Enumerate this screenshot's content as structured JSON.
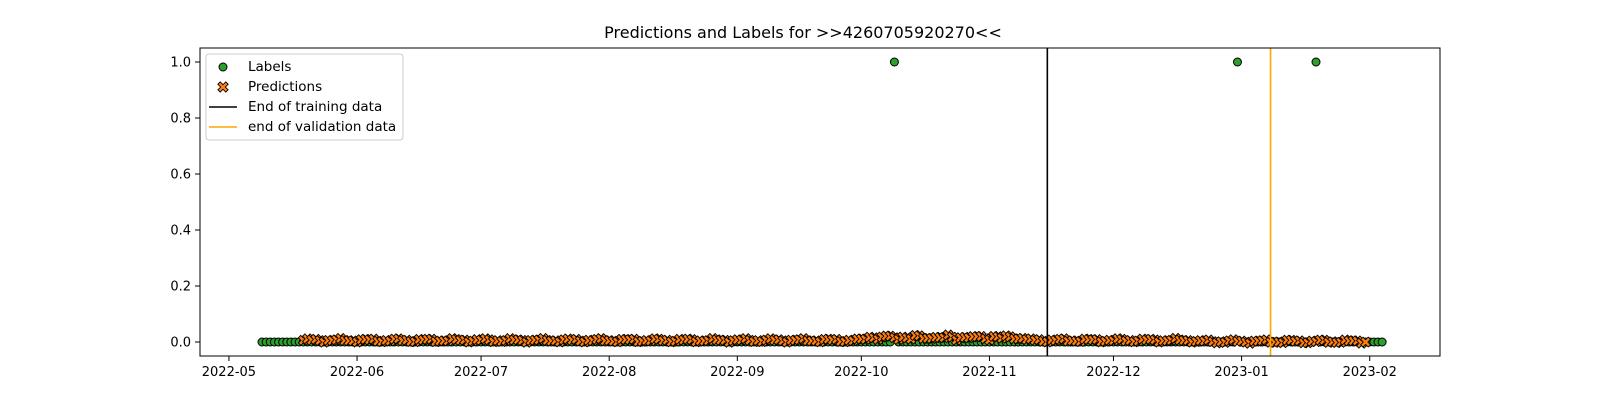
{
  "chart_data": {
    "type": "scatter",
    "title": "Predictions and Labels for >>4260705920270<<",
    "xlabel": "",
    "ylabel": "",
    "x_start": "2022-05-09",
    "x_end": "2023-02-04",
    "xlim": [
      "2022-04-24",
      "2023-02-18"
    ],
    "ylim": [
      -0.05,
      1.05
    ],
    "yticks": [
      0.0,
      0.2,
      0.4,
      0.6,
      0.8,
      1.0
    ],
    "ytick_labels": [
      "0.0",
      "0.2",
      "0.4",
      "0.6",
      "0.8",
      "1.0"
    ],
    "xticks": [
      "2022-05-01",
      "2022-06-01",
      "2022-07-01",
      "2022-08-01",
      "2022-09-01",
      "2022-10-01",
      "2022-11-01",
      "2022-12-01",
      "2023-01-01",
      "2023-02-01"
    ],
    "xtick_labels": [
      "2022-05",
      "2022-06",
      "2022-07",
      "2022-08",
      "2022-09",
      "2022-10",
      "2022-11",
      "2022-12",
      "2023-01",
      "2023-02"
    ],
    "grid": false,
    "legend_position": "upper-left",
    "labels_series": {
      "name": "Labels",
      "color": "#2ca02c",
      "default_value": 0,
      "positive_dates": [
        "2022-10-09",
        "2022-12-31",
        "2023-01-19"
      ]
    },
    "predictions_series": {
      "name": "Predictions",
      "color": "#ff7f0e",
      "start": "2022-05-19",
      "end": "2023-01-31",
      "values_approx": "small values near 0, roughly 0.00–0.03"
    },
    "vlines": [
      {
        "name": "End of training data",
        "date": "2022-11-15",
        "color": "#000000"
      },
      {
        "name": "end of validation data",
        "date": "2023-01-08",
        "color": "#ffa500"
      }
    ]
  }
}
